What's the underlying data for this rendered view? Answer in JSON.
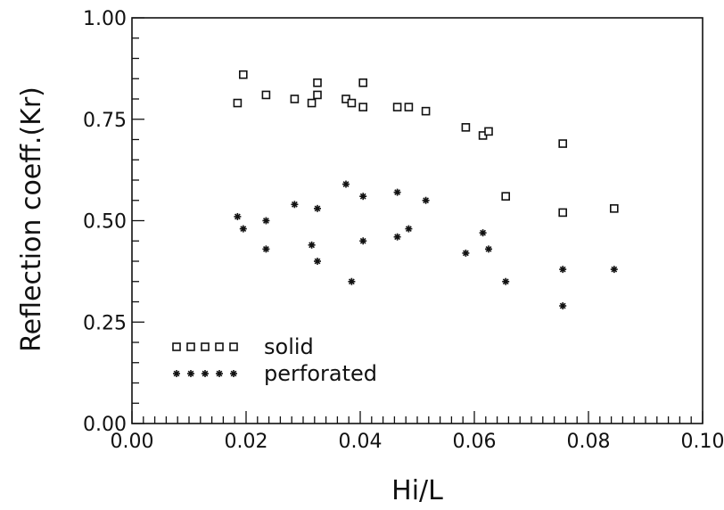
{
  "chart_data": {
    "type": "scatter",
    "xlabel": "Hi/L",
    "ylabel": "Reflection  coeff.(Kr)",
    "xlim": [
      0.0,
      0.1
    ],
    "ylim": [
      0.0,
      1.0
    ],
    "xticks": [
      0.0,
      0.02,
      0.04,
      0.06,
      0.08,
      0.1
    ],
    "xtick_labels": [
      "0.00",
      "0.02",
      "0.04",
      "0.06",
      "0.08",
      "0.10"
    ],
    "x_minor_step": 0.002,
    "yticks": [
      0.0,
      0.25,
      0.5,
      0.75,
      1.0
    ],
    "ytick_labels": [
      "0.00",
      "0.25",
      "0.50",
      "0.75",
      "1.00"
    ],
    "y_minor_step": 0.05,
    "grid": false,
    "legend_position": "bottom-left",
    "series": [
      {
        "name": "solid",
        "marker": "square",
        "color": "#111111",
        "points": [
          [
            0.0185,
            0.79
          ],
          [
            0.0195,
            0.86
          ],
          [
            0.0235,
            0.81
          ],
          [
            0.0285,
            0.8
          ],
          [
            0.0315,
            0.79
          ],
          [
            0.0325,
            0.81
          ],
          [
            0.0325,
            0.84
          ],
          [
            0.0375,
            0.8
          ],
          [
            0.0385,
            0.79
          ],
          [
            0.0405,
            0.84
          ],
          [
            0.0405,
            0.78
          ],
          [
            0.0465,
            0.78
          ],
          [
            0.0485,
            0.78
          ],
          [
            0.0515,
            0.77
          ],
          [
            0.0585,
            0.73
          ],
          [
            0.0615,
            0.71
          ],
          [
            0.0625,
            0.72
          ],
          [
            0.0655,
            0.56
          ],
          [
            0.0755,
            0.69
          ],
          [
            0.0755,
            0.52
          ],
          [
            0.0845,
            0.53
          ]
        ]
      },
      {
        "name": "perforated",
        "marker": "star",
        "color": "#111111",
        "points": [
          [
            0.0185,
            0.51
          ],
          [
            0.0195,
            0.48
          ],
          [
            0.0235,
            0.5
          ],
          [
            0.0235,
            0.43
          ],
          [
            0.0285,
            0.54
          ],
          [
            0.0315,
            0.44
          ],
          [
            0.0325,
            0.53
          ],
          [
            0.0325,
            0.4
          ],
          [
            0.0375,
            0.59
          ],
          [
            0.0385,
            0.35
          ],
          [
            0.0405,
            0.56
          ],
          [
            0.0405,
            0.45
          ],
          [
            0.0465,
            0.57
          ],
          [
            0.0465,
            0.46
          ],
          [
            0.0485,
            0.48
          ],
          [
            0.0515,
            0.55
          ],
          [
            0.0585,
            0.42
          ],
          [
            0.0615,
            0.47
          ],
          [
            0.0625,
            0.43
          ],
          [
            0.0655,
            0.35
          ],
          [
            0.0755,
            0.38
          ],
          [
            0.0755,
            0.29
          ],
          [
            0.0845,
            0.38
          ]
        ]
      }
    ]
  }
}
